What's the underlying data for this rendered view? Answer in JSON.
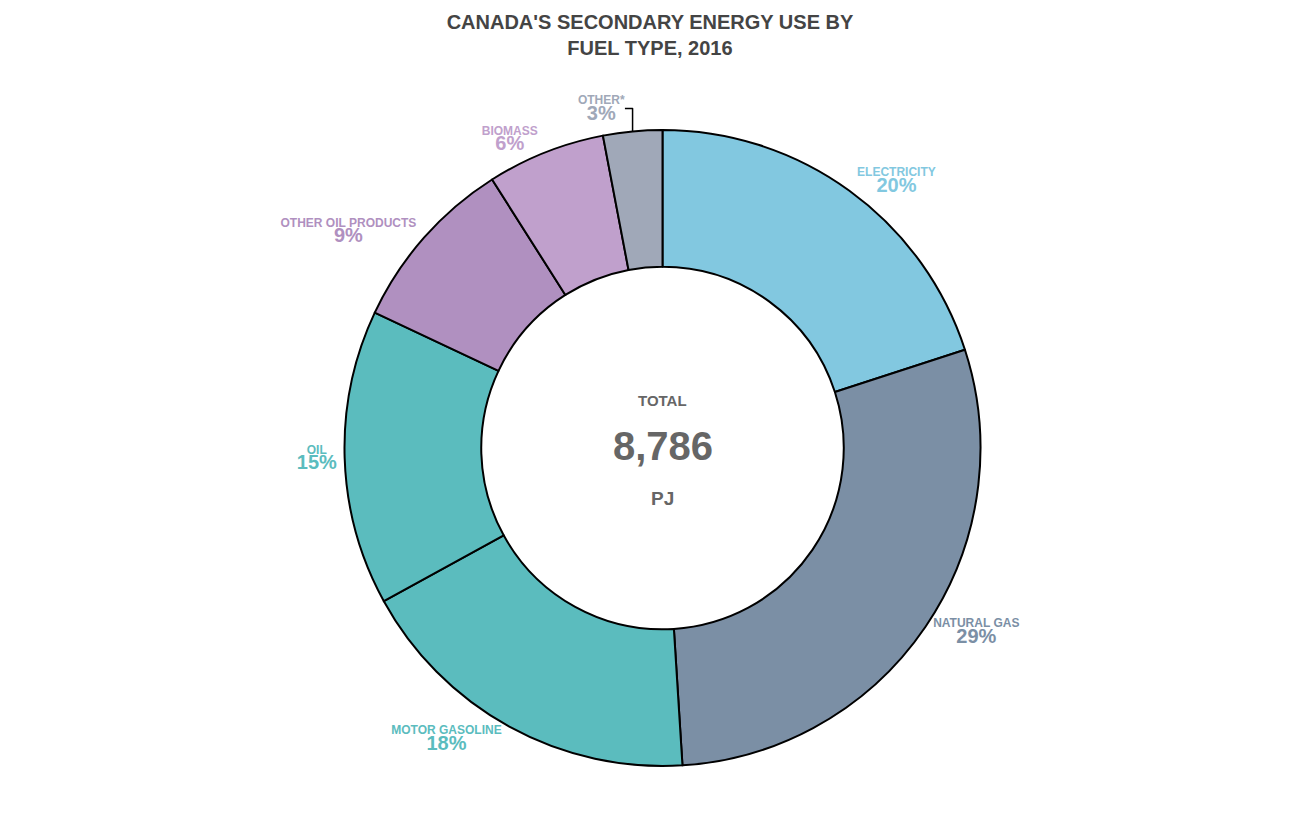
{
  "chart_data": {
    "type": "pie",
    "title": "CANADA'S SECONDARY ENERGY USE BY\nFUEL TYPE, 2016",
    "categories": [
      "ELECTRICITY",
      "NATURAL GAS",
      "MOTOR GASOLINE",
      "OIL",
      "OTHER OIL PRODUCTS",
      "BIOMASS",
      "OTHER*"
    ],
    "values": [
      20,
      29,
      18,
      15,
      9,
      6,
      3
    ],
    "value_labels": [
      "20%",
      "29%",
      "18%",
      "15%",
      "9%",
      "6%",
      "3%"
    ],
    "colors": [
      "#82c8e0",
      "#7b8fa5",
      "#5bbcbe",
      "#5bbcbe",
      "#b090c0",
      "#c0a0cc",
      "#a0a8b8"
    ],
    "annotations": [
      "TOTAL",
      "8,786",
      "PJ"
    ],
    "data_labels": true
  }
}
